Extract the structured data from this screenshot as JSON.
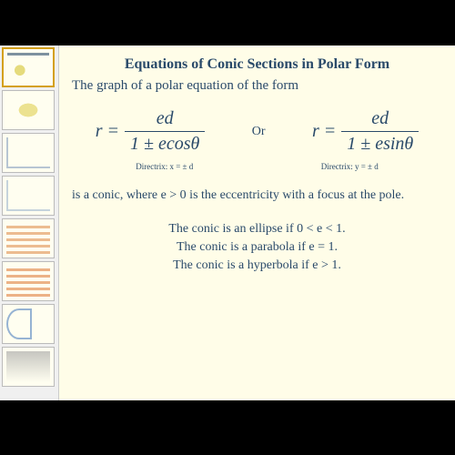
{
  "slide": {
    "background_color": "#fffde8",
    "text_color": "#2a4a6a",
    "title": "Equations of Conic  Sections in Polar Form",
    "subtitle": "The graph of a polar equation of the form",
    "eq_or": "Or",
    "eq1": {
      "lhs": "r =",
      "num": "ed",
      "den": "1 ± ecosθ",
      "directrix": "Directrix:   x = ± d"
    },
    "eq2": {
      "lhs": "r =",
      "num": "ed",
      "den": "1 ± esinθ",
      "directrix": "Directrix:   y = ± d"
    },
    "description": "is a conic, where e > 0 is the eccentricity with a focus at the pole.",
    "cases": [
      "The conic is an ellipse if 0 < e < 1.",
      "The conic is a parabola if e = 1.",
      "The conic is a hyperbola if e > 1."
    ]
  },
  "thumbs": [
    {
      "bg": "#fffef0",
      "deco": "#d4c430"
    },
    {
      "bg": "#fffef0",
      "deco": "#e0d050"
    },
    {
      "bg": "#fffef0",
      "deco": "#88a0c0"
    },
    {
      "bg": "#fffef0",
      "deco": "#a0b8d0"
    },
    {
      "bg": "#fffef0",
      "deco": "#e09050"
    },
    {
      "bg": "#fffef0",
      "deco": "#e08040"
    },
    {
      "bg": "#fffef0",
      "deco": "#5080c0"
    },
    {
      "bg": "#fffef0",
      "deco": "#a0a0a0"
    }
  ],
  "active_thumb": 0
}
